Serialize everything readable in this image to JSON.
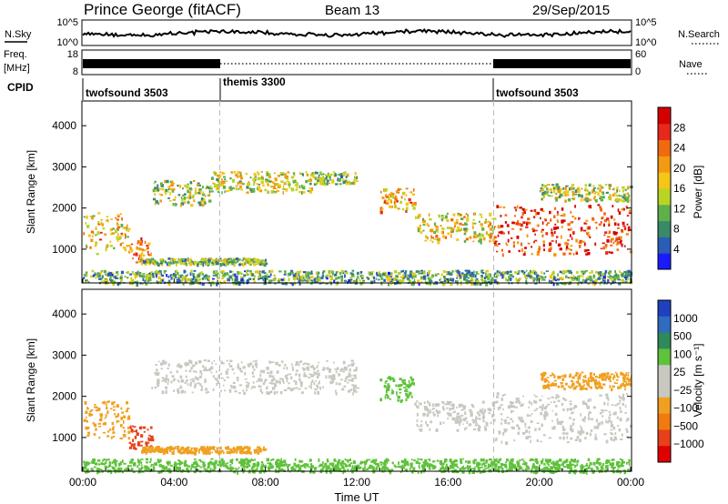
{
  "header": {
    "station": "Prince George (fitACF)",
    "beam": "Beam 13",
    "date": "29/Sep/2015"
  },
  "nsky_panel": {
    "left_label": "N.Sky",
    "left_ticks": [
      "10^5",
      "10^0"
    ],
    "right_label": "N.Search",
    "right_ticks": [
      "10^5",
      "10^0"
    ]
  },
  "freq_panel": {
    "left_label_line1": "Freq.",
    "left_label_line2": "[MHz]",
    "left_ticks": [
      "18",
      "8"
    ],
    "right_label": "Nave",
    "right_ticks": [
      "60",
      "0"
    ]
  },
  "cpid": {
    "label": "CPID",
    "segments": [
      {
        "name": "twofsound 3503",
        "start_hour": 0,
        "end_hour": 6
      },
      {
        "name": "themis 3300",
        "start_hour": 6,
        "end_hour": 18
      },
      {
        "name": "twofsound 3503",
        "start_hour": 18,
        "end_hour": 24
      }
    ]
  },
  "x_axis": {
    "label": "Time UT",
    "ticks": [
      "00:00",
      "04:00",
      "08:00",
      "12:00",
      "16:00",
      "20:00",
      "00:00"
    ]
  },
  "power_panel": {
    "ylabel": "Slant Range [km]",
    "yticks": [
      "1000",
      "2000",
      "3000",
      "4000"
    ],
    "colorbar_label": "Power [dB]",
    "colorbar_ticks": [
      "4",
      "8",
      "12",
      "16",
      "20",
      "24",
      "28"
    ],
    "colors": [
      "#1a1aff",
      "#2b5cb8",
      "#3a8a6a",
      "#5fb04a",
      "#b9d424",
      "#f5c518",
      "#f39a12",
      "#f06a10",
      "#e8281a",
      "#d40000"
    ]
  },
  "velocity_panel": {
    "ylabel": "Slant Range [km]",
    "yticks": [
      "1000",
      "2000",
      "3000",
      "4000"
    ],
    "colorbar_label": "Velocity [m s⁻¹]",
    "colorbar_ticks": [
      "1000",
      "500",
      "100",
      "25",
      "−25",
      "−100",
      "−500",
      "−1000"
    ],
    "colors": [
      "#2040c0",
      "#2f6cc0",
      "#2e8a5a",
      "#5ec23a",
      "#c8c8c0",
      "#c8c8c0",
      "#f0a020",
      "#f07a10",
      "#e8401a",
      "#e00000"
    ]
  },
  "chart_data": {
    "type": "heatmap",
    "x_range_hours": [
      0,
      24
    ],
    "y_range_km": [
      180,
      4600
    ],
    "power_features": [
      {
        "t0": 0,
        "t1": 2.0,
        "r0": 900,
        "r1": 1900,
        "power_db": 18
      },
      {
        "t0": 2.0,
        "t1": 3.0,
        "r0": 700,
        "r1": 1300,
        "power_db": 22
      },
      {
        "t0": 3.0,
        "t1": 5.5,
        "r0": 2100,
        "r1": 2700,
        "power_db": 14
      },
      {
        "t0": 5.5,
        "t1": 10.0,
        "r0": 2400,
        "r1": 2900,
        "power_db": 14
      },
      {
        "t0": 10.0,
        "t1": 12.0,
        "r0": 2600,
        "r1": 2900,
        "power_db": 12
      },
      {
        "t0": 2.5,
        "t1": 8.0,
        "r0": 650,
        "r1": 800,
        "power_db": 12
      },
      {
        "t0": 0,
        "t1": 24,
        "r0": 180,
        "r1": 500,
        "power_db": 10
      },
      {
        "t0": 13.0,
        "t1": 14.5,
        "r0": 1900,
        "r1": 2500,
        "power_db": 20
      },
      {
        "t0": 14.5,
        "t1": 18.0,
        "r0": 1200,
        "r1": 1900,
        "power_db": 16
      },
      {
        "t0": 18.0,
        "t1": 24,
        "r0": 900,
        "r1": 2100,
        "power_db": 26
      },
      {
        "t0": 20.0,
        "t1": 24,
        "r0": 2200,
        "r1": 2600,
        "power_db": 14
      }
    ],
    "velocity_features": [
      {
        "t0": 0,
        "t1": 2.0,
        "r0": 1000,
        "r1": 1900,
        "velocity": -100
      },
      {
        "t0": 2.0,
        "t1": 3.0,
        "r0": 700,
        "r1": 1300,
        "velocity": -500
      },
      {
        "t0": 3.0,
        "t1": 12.0,
        "r0": 2100,
        "r1": 2900,
        "velocity": 0
      },
      {
        "t0": 2.5,
        "t1": 8.0,
        "r0": 650,
        "r1": 800,
        "velocity": -100
      },
      {
        "t0": 0,
        "t1": 24,
        "r0": 180,
        "r1": 500,
        "velocity": 100
      },
      {
        "t0": 13.0,
        "t1": 14.5,
        "r0": 1900,
        "r1": 2500,
        "velocity": 100
      },
      {
        "t0": 14.5,
        "t1": 18.0,
        "r0": 1200,
        "r1": 1900,
        "velocity": 0
      },
      {
        "t0": 18.0,
        "t1": 24,
        "r0": 900,
        "r1": 2100,
        "velocity": 0
      },
      {
        "t0": 20.0,
        "t1": 24,
        "r0": 2200,
        "r1": 2600,
        "velocity": -100
      }
    ]
  }
}
